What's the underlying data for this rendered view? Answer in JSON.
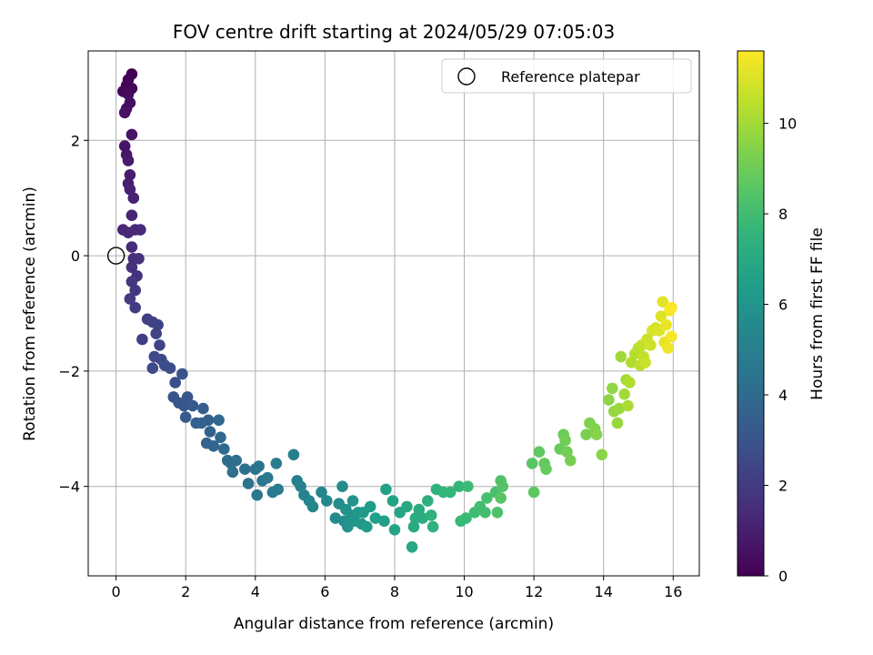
{
  "chart_data": {
    "type": "scatter",
    "title": "FOV centre drift starting at 2024/05/29 07:05:03",
    "xlabel": "Angular distance from reference (arcmin)",
    "ylabel": "Rotation from reference (arcmin)",
    "xlim": [
      -0.8,
      16.75
    ],
    "ylim": [
      -5.55,
      3.55
    ],
    "xticks": [
      0,
      2,
      4,
      6,
      8,
      10,
      12,
      14,
      16
    ],
    "xtick_labels": [
      "0",
      "2",
      "4",
      "6",
      "8",
      "10",
      "12",
      "14",
      "16"
    ],
    "yticks": [
      -4,
      -2,
      0,
      2
    ],
    "ytick_labels": [
      "−4",
      "−2",
      "0",
      "2"
    ],
    "grid": true,
    "legend": {
      "placement": "top-right",
      "entries": [
        {
          "label": "Reference platepar",
          "marker": "open-circle"
        }
      ]
    },
    "reference_point": {
      "x": 0,
      "y": 0
    },
    "colorbar": {
      "label": "Hours from first FF file",
      "colormap": "viridis",
      "range": [
        0,
        11.6
      ],
      "ticks": [
        0,
        2,
        4,
        6,
        8,
        10
      ],
      "tick_labels": [
        "0",
        "2",
        "4",
        "6",
        "8",
        "10"
      ]
    },
    "series": [
      {
        "color_by": "hours",
        "points": [
          [
            0.45,
            3.15
          ],
          [
            0.35,
            3.05
          ],
          [
            0.3,
            2.95
          ],
          [
            0.45,
            2.9
          ],
          [
            0.2,
            2.85
          ],
          [
            0.35,
            2.8
          ],
          [
            0.4,
            2.65
          ],
          [
            0.3,
            2.55
          ],
          [
            0.25,
            2.48
          ],
          [
            0.45,
            2.1
          ],
          [
            0.25,
            1.9
          ],
          [
            0.3,
            1.75
          ],
          [
            0.35,
            1.65
          ],
          [
            0.4,
            1.4
          ],
          [
            0.35,
            1.25
          ],
          [
            0.4,
            1.15
          ],
          [
            0.5,
            1.0
          ],
          [
            0.45,
            0.7
          ],
          [
            0.2,
            0.45
          ],
          [
            0.35,
            0.4
          ],
          [
            0.55,
            0.45
          ],
          [
            0.7,
            0.45
          ],
          [
            0.45,
            0.15
          ],
          [
            0.5,
            -0.05
          ],
          [
            0.65,
            -0.05
          ],
          [
            0.45,
            -0.2
          ],
          [
            0.6,
            -0.35
          ],
          [
            0.45,
            -0.45
          ],
          [
            0.55,
            -0.6
          ],
          [
            0.4,
            -0.75
          ],
          [
            0.55,
            -0.9
          ],
          [
            0.75,
            -1.45
          ],
          [
            0.9,
            -1.1
          ],
          [
            1.05,
            -1.15
          ],
          [
            1.2,
            -1.2
          ],
          [
            1.15,
            -1.35
          ],
          [
            1.25,
            -1.55
          ],
          [
            1.1,
            -1.75
          ],
          [
            1.3,
            -1.8
          ],
          [
            1.05,
            -1.95
          ],
          [
            1.4,
            -1.9
          ],
          [
            1.55,
            -1.95
          ],
          [
            1.7,
            -2.2
          ],
          [
            1.9,
            -2.05
          ],
          [
            1.65,
            -2.45
          ],
          [
            1.8,
            -2.55
          ],
          [
            1.95,
            -2.6
          ],
          [
            2.05,
            -2.45
          ],
          [
            2.2,
            -2.6
          ],
          [
            2.0,
            -2.8
          ],
          [
            2.3,
            -2.9
          ],
          [
            2.5,
            -2.65
          ],
          [
            2.65,
            -2.85
          ],
          [
            2.45,
            -2.9
          ],
          [
            2.7,
            -3.05
          ],
          [
            2.6,
            -3.25
          ],
          [
            2.8,
            -3.3
          ],
          [
            2.95,
            -2.85
          ],
          [
            3.0,
            -3.15
          ],
          [
            3.1,
            -3.35
          ],
          [
            3.2,
            -3.55
          ],
          [
            3.3,
            -3.6
          ],
          [
            3.45,
            -3.55
          ],
          [
            3.35,
            -3.75
          ],
          [
            3.7,
            -3.7
          ],
          [
            3.8,
            -3.95
          ],
          [
            4.0,
            -3.7
          ],
          [
            4.1,
            -3.65
          ],
          [
            4.2,
            -3.9
          ],
          [
            4.05,
            -4.15
          ],
          [
            4.35,
            -3.85
          ],
          [
            4.5,
            -4.1
          ],
          [
            4.65,
            -4.05
          ],
          [
            4.6,
            -3.6
          ],
          [
            5.1,
            -3.45
          ],
          [
            5.2,
            -3.9
          ],
          [
            5.3,
            -4.0
          ],
          [
            5.4,
            -4.15
          ],
          [
            5.55,
            -4.25
          ],
          [
            5.65,
            -4.35
          ],
          [
            5.9,
            -4.1
          ],
          [
            6.05,
            -4.25
          ],
          [
            6.3,
            -4.55
          ],
          [
            6.4,
            -4.3
          ],
          [
            6.5,
            -4.0
          ],
          [
            6.55,
            -4.6
          ],
          [
            6.6,
            -4.4
          ],
          [
            6.65,
            -4.7
          ],
          [
            6.75,
            -4.5
          ],
          [
            6.8,
            -4.25
          ],
          [
            6.85,
            -4.6
          ],
          [
            6.95,
            -4.45
          ],
          [
            7.05,
            -4.65
          ],
          [
            7.1,
            -4.45
          ],
          [
            7.2,
            -4.7
          ],
          [
            7.3,
            -4.35
          ],
          [
            7.45,
            -4.55
          ],
          [
            7.7,
            -4.6
          ],
          [
            7.75,
            -4.05
          ],
          [
            7.95,
            -4.25
          ],
          [
            8.0,
            -4.75
          ],
          [
            8.15,
            -4.45
          ],
          [
            8.35,
            -4.35
          ],
          [
            8.5,
            -5.05
          ],
          [
            8.55,
            -4.7
          ],
          [
            8.6,
            -4.55
          ],
          [
            8.7,
            -4.4
          ],
          [
            8.8,
            -4.55
          ],
          [
            8.95,
            -4.25
          ],
          [
            9.05,
            -4.5
          ],
          [
            9.1,
            -4.7
          ],
          [
            9.2,
            -4.05
          ],
          [
            9.4,
            -4.1
          ],
          [
            9.6,
            -4.1
          ],
          [
            9.85,
            -4.0
          ],
          [
            9.9,
            -4.6
          ],
          [
            10.05,
            -4.55
          ],
          [
            10.1,
            -4.0
          ],
          [
            10.3,
            -4.45
          ],
          [
            10.45,
            -4.35
          ],
          [
            10.6,
            -4.45
          ],
          [
            10.65,
            -4.2
          ],
          [
            10.9,
            -4.1
          ],
          [
            10.95,
            -4.45
          ],
          [
            11.05,
            -3.9
          ],
          [
            11.1,
            -4.0
          ],
          [
            11.05,
            -4.2
          ],
          [
            11.95,
            -3.6
          ],
          [
            12.0,
            -4.1
          ],
          [
            12.15,
            -3.4
          ],
          [
            12.3,
            -3.6
          ],
          [
            12.35,
            -3.7
          ],
          [
            12.75,
            -3.35
          ],
          [
            12.85,
            -3.1
          ],
          [
            12.9,
            -3.2
          ],
          [
            12.95,
            -3.4
          ],
          [
            13.05,
            -3.55
          ],
          [
            13.5,
            -3.1
          ],
          [
            13.6,
            -2.9
          ],
          [
            13.75,
            -3.0
          ],
          [
            13.8,
            -3.1
          ],
          [
            13.95,
            -3.45
          ],
          [
            14.15,
            -2.5
          ],
          [
            14.25,
            -2.3
          ],
          [
            14.3,
            -2.7
          ],
          [
            14.4,
            -2.9
          ],
          [
            14.45,
            -2.65
          ],
          [
            14.5,
            -1.75
          ],
          [
            14.6,
            -2.4
          ],
          [
            14.65,
            -2.15
          ],
          [
            14.7,
            -2.6
          ],
          [
            14.75,
            -2.2
          ],
          [
            14.8,
            -1.85
          ],
          [
            14.9,
            -1.7
          ],
          [
            15.0,
            -1.6
          ],
          [
            15.05,
            -1.9
          ],
          [
            15.1,
            -1.55
          ],
          [
            15.15,
            -1.75
          ],
          [
            15.2,
            -1.85
          ],
          [
            15.25,
            -1.45
          ],
          [
            15.35,
            -1.55
          ],
          [
            15.4,
            -1.3
          ],
          [
            15.5,
            -1.25
          ],
          [
            15.6,
            -1.3
          ],
          [
            15.65,
            -1.05
          ],
          [
            15.7,
            -0.8
          ],
          [
            15.75,
            -1.5
          ],
          [
            15.8,
            -1.2
          ],
          [
            15.85,
            -1.6
          ],
          [
            15.9,
            -0.95
          ],
          [
            15.95,
            -1.4
          ],
          [
            15.95,
            -0.9
          ]
        ]
      }
    ]
  }
}
